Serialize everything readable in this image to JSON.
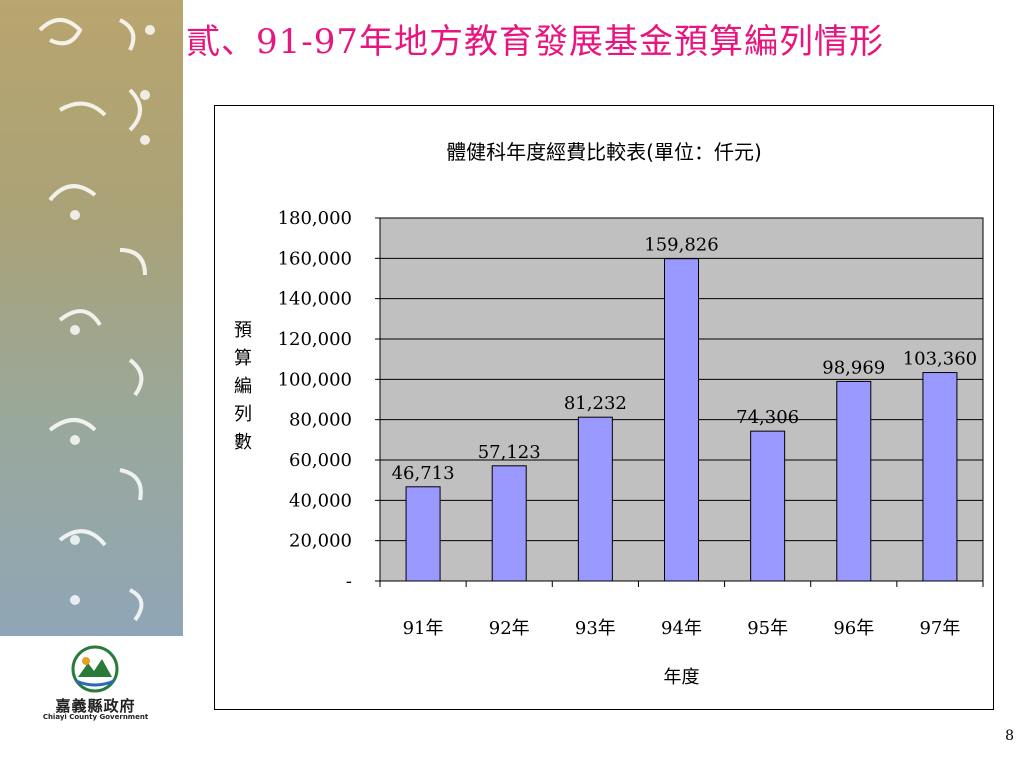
{
  "slide": {
    "title": "貳、91-97年地方教育發展基金預算編列情形",
    "page_number": "8"
  },
  "logo": {
    "name": "嘉義縣政府",
    "subtitle": "Chiayi County Government"
  },
  "colors": {
    "title": "#e8157f",
    "bar": "#9999ff",
    "plot_bg": "#c0c0c0"
  },
  "chart_data": {
    "type": "bar",
    "title": "體健科年度經費比較表(單位：仟元)",
    "xlabel": "年度",
    "ylabel": "預算編列數",
    "categories": [
      "91年",
      "92年",
      "93年",
      "94年",
      "95年",
      "96年",
      "97年"
    ],
    "values": [
      46713,
      57123,
      81232,
      159826,
      74306,
      98969,
      103360
    ],
    "data_labels": [
      "46,713",
      "57,123",
      "81,232",
      "159,826",
      "74,306",
      "98,969",
      "103,360"
    ],
    "y_ticks": [
      "-",
      "20,000",
      "40,000",
      "60,000",
      "80,000",
      "100,000",
      "120,000",
      "140,000",
      "160,000",
      "180,000"
    ],
    "ylim": [
      0,
      180000
    ],
    "grid": true,
    "legend": "none"
  }
}
